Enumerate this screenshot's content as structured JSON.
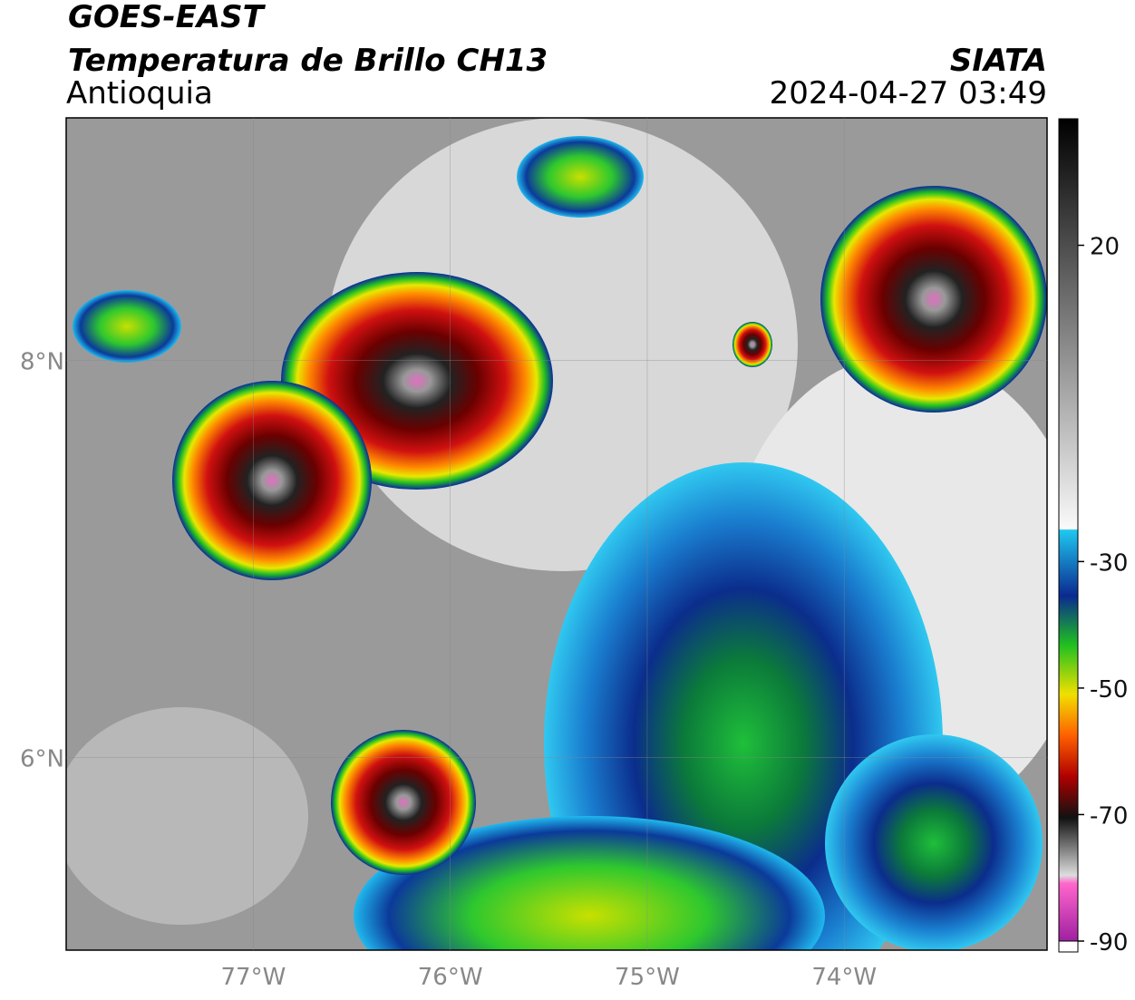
{
  "header": {
    "satellite": "GOES-EAST",
    "product": "Temperatura de Brillo CH13",
    "region": "Antioquia",
    "agency": "SIATA",
    "datetime": "2024-04-27 03:49"
  },
  "map": {
    "xlim": [
      -77.95,
      -72.97
    ],
    "ylim": [
      5.03,
      9.22
    ],
    "xticks": [
      {
        "value": -77,
        "label": "77°W"
      },
      {
        "value": -76,
        "label": "76°W"
      },
      {
        "value": -75,
        "label": "75°W"
      },
      {
        "value": -74,
        "label": "74°W"
      }
    ],
    "yticks": [
      {
        "value": 6,
        "label": "6°N"
      },
      {
        "value": 8,
        "label": "8°N"
      }
    ]
  },
  "colorbar": {
    "lim": [
      -90,
      40
    ],
    "ticks": [
      20,
      -30,
      -50,
      -70,
      -90
    ]
  }
}
